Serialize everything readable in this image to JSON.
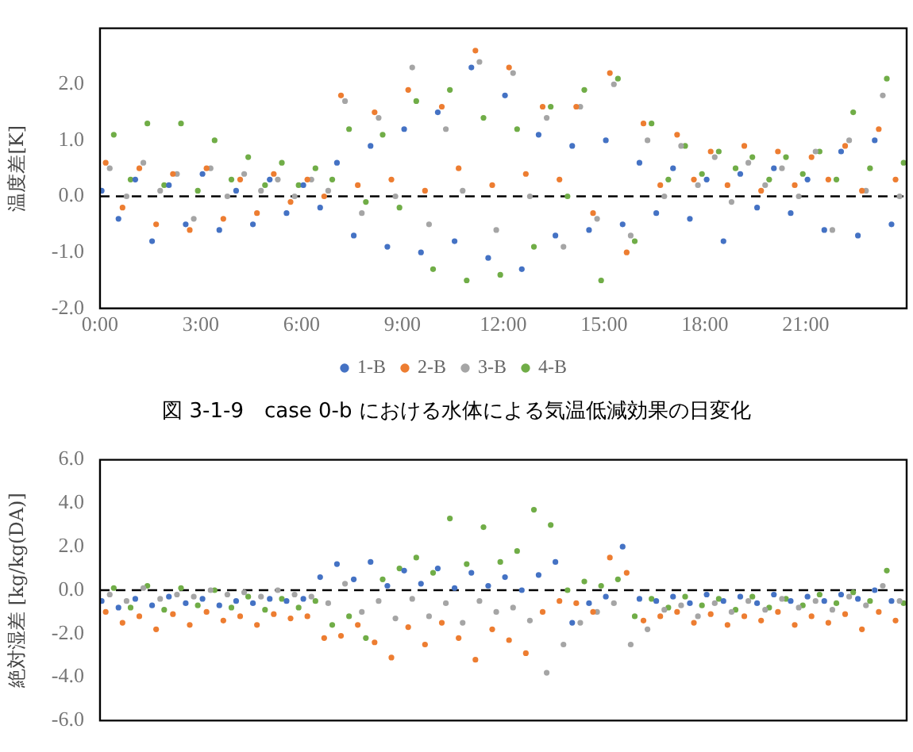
{
  "chart_data": [
    {
      "type": "scatter",
      "ylabel": "温度差[K]",
      "annotations": [
        "図 3-1-9　case 0-b における水体による気温低減効果の日変化"
      ],
      "xlim": [
        0,
        24
      ],
      "xticks": [
        {
          "value": 0,
          "label": "0:00"
        },
        {
          "value": 3,
          "label": "3:00"
        },
        {
          "value": 6,
          "label": "6:00"
        },
        {
          "value": 9,
          "label": "9:00"
        },
        {
          "value": 12,
          "label": "12:00"
        },
        {
          "value": 15,
          "label": "15:00"
        },
        {
          "value": 18,
          "label": "18:00"
        },
        {
          "value": 21,
          "label": "21:00"
        }
      ],
      "ylim": [
        -2,
        3
      ],
      "yticks": [
        {
          "value": -2,
          "label": "-2.0"
        },
        {
          "value": -1,
          "label": "-1.0"
        },
        {
          "value": 0,
          "label": "0.0"
        },
        {
          "value": 1,
          "label": "1.0"
        },
        {
          "value": 2,
          "label": "2.0"
        }
      ],
      "grid": false,
      "legend": "bottom",
      "marker": "circle",
      "ref_lines": [
        {
          "axis": "y",
          "value": 0,
          "color": "#000000",
          "line_style": "dashed"
        }
      ],
      "series": [
        {
          "name": "1-B",
          "color": "#4472c4",
          "x": [
            0.05,
            0.55,
            1.05,
            1.55,
            2.05,
            2.55,
            3.05,
            3.55,
            4.05,
            4.55,
            5.05,
            5.55,
            6.05,
            6.55,
            7.05,
            7.55,
            8.05,
            8.55,
            9.05,
            9.55,
            10.05,
            10.55,
            11.05,
            11.55,
            12.05,
            12.55,
            13.05,
            13.55,
            14.05,
            14.55,
            15.05,
            15.55,
            16.05,
            16.55,
            17.05,
            17.55,
            18.05,
            18.55,
            19.05,
            19.55,
            20.05,
            20.55,
            21.05,
            21.55,
            22.05,
            22.55,
            23.05,
            23.55
          ],
          "values": [
            0.1,
            -0.4,
            0.3,
            -0.8,
            0.2,
            -0.5,
            0.4,
            -0.6,
            0.1,
            -0.5,
            0.3,
            -0.3,
            0.2,
            -0.2,
            0.6,
            -0.7,
            0.9,
            -0.9,
            1.2,
            -1.0,
            1.5,
            -0.8,
            2.3,
            -1.1,
            1.8,
            -1.3,
            1.1,
            -0.7,
            0.9,
            -0.6,
            1.0,
            -0.5,
            0.6,
            -0.3,
            0.5,
            -0.4,
            0.3,
            -0.8,
            0.4,
            -0.2,
            0.5,
            -0.3,
            0.3,
            -0.6,
            0.8,
            -0.7,
            1.0,
            -0.5
          ]
        },
        {
          "name": "2-B",
          "color": "#ed7d31",
          "x": [
            0.17,
            0.67,
            1.17,
            1.67,
            2.17,
            2.67,
            3.17,
            3.67,
            4.17,
            4.67,
            5.17,
            5.67,
            6.17,
            6.67,
            7.17,
            7.67,
            8.17,
            8.67,
            9.17,
            9.67,
            10.17,
            10.67,
            11.17,
            11.67,
            12.17,
            12.67,
            13.17,
            13.67,
            14.17,
            14.67,
            15.17,
            15.67,
            16.17,
            16.67,
            17.17,
            17.67,
            18.17,
            18.67,
            19.17,
            19.67,
            20.17,
            20.67,
            21.17,
            21.67,
            22.17,
            22.67,
            23.17,
            23.67
          ],
          "values": [
            0.6,
            -0.2,
            0.5,
            -0.5,
            0.4,
            -0.6,
            0.5,
            -0.4,
            0.3,
            -0.3,
            0.4,
            -0.1,
            0.3,
            0.0,
            1.8,
            0.2,
            1.5,
            0.3,
            1.9,
            0.1,
            1.6,
            0.5,
            2.6,
            0.2,
            2.3,
            0.4,
            1.6,
            0.3,
            1.6,
            -0.3,
            2.2,
            -1.0,
            1.3,
            0.2,
            1.1,
            0.3,
            0.8,
            0.2,
            0.9,
            0.1,
            0.8,
            0.2,
            0.7,
            0.3,
            0.9,
            0.1,
            1.2,
            0.3
          ]
        },
        {
          "name": "3-B",
          "color": "#a5a5a5",
          "x": [
            0.29,
            0.79,
            1.29,
            1.79,
            2.29,
            2.79,
            3.29,
            3.79,
            4.29,
            4.79,
            5.29,
            5.79,
            6.29,
            6.79,
            7.29,
            7.79,
            8.29,
            8.79,
            9.29,
            9.79,
            10.29,
            10.79,
            11.29,
            11.79,
            12.29,
            12.79,
            13.29,
            13.79,
            14.29,
            14.79,
            15.29,
            15.79,
            16.29,
            16.79,
            17.29,
            17.79,
            18.29,
            18.79,
            19.29,
            19.79,
            20.29,
            20.79,
            21.29,
            21.79,
            22.29,
            22.79,
            23.29,
            23.79
          ],
          "values": [
            0.5,
            0.0,
            0.6,
            0.1,
            0.4,
            -0.4,
            0.5,
            0.0,
            0.4,
            0.1,
            0.3,
            0.0,
            0.3,
            0.1,
            1.7,
            -0.3,
            1.4,
            0.0,
            2.3,
            -0.5,
            1.2,
            0.1,
            2.4,
            -0.6,
            2.2,
            0.0,
            1.4,
            -0.9,
            1.6,
            -0.4,
            2.0,
            -0.7,
            1.0,
            0.0,
            0.9,
            0.2,
            0.7,
            -0.1,
            0.6,
            0.2,
            0.5,
            0.0,
            0.8,
            -0.6,
            1.0,
            0.1,
            1.8,
            0.0
          ]
        },
        {
          "name": "4-B",
          "color": "#70ad47",
          "x": [
            0.41,
            0.91,
            1.41,
            1.91,
            2.41,
            2.91,
            3.41,
            3.91,
            4.41,
            4.91,
            5.41,
            5.91,
            6.41,
            6.91,
            7.41,
            7.91,
            8.41,
            8.91,
            9.41,
            9.91,
            10.41,
            10.91,
            11.41,
            11.91,
            12.41,
            12.91,
            13.41,
            13.91,
            14.41,
            14.91,
            15.41,
            15.91,
            16.41,
            16.91,
            17.41,
            17.91,
            18.41,
            18.91,
            19.41,
            19.91,
            20.41,
            20.91,
            21.41,
            21.91,
            22.41,
            22.91,
            23.41,
            23.91
          ],
          "values": [
            1.1,
            0.3,
            1.3,
            0.2,
            1.3,
            0.1,
            1.0,
            0.3,
            0.7,
            0.2,
            0.6,
            0.2,
            0.5,
            0.3,
            1.2,
            -0.1,
            1.1,
            -0.2,
            1.7,
            -1.3,
            1.9,
            -1.5,
            1.4,
            -1.4,
            1.2,
            -0.9,
            1.6,
            0.0,
            1.9,
            -1.5,
            2.1,
            -0.8,
            1.3,
            0.3,
            0.9,
            0.4,
            0.8,
            0.5,
            0.7,
            0.3,
            0.7,
            0.4,
            0.8,
            0.3,
            1.5,
            0.5,
            2.1,
            0.6
          ]
        }
      ]
    },
    {
      "type": "scatter",
      "ylabel": "絶対湿差 [kg/kg(DA)]",
      "xlim": [
        0,
        24
      ],
      "tick_labels": "y",
      "ylim": [
        -6,
        6
      ],
      "yticks": [
        {
          "value": -6,
          "label": "-6.0"
        },
        {
          "value": -4,
          "label": "-4.0"
        },
        {
          "value": -2,
          "label": "-2.0"
        },
        {
          "value": 0,
          "label": "0.0"
        },
        {
          "value": 2,
          "label": "2.0"
        },
        {
          "value": 4,
          "label": "4.0"
        },
        {
          "value": 6,
          "label": "6.0"
        }
      ],
      "grid": false,
      "marker": "circle",
      "ref_lines": [
        {
          "axis": "y",
          "value": 0,
          "color": "#000000",
          "line_style": "dashed"
        }
      ],
      "series": [
        {
          "color": "#4472c4",
          "x": [
            0.05,
            0.55,
            1.05,
            1.55,
            2.05,
            2.55,
            3.05,
            3.55,
            4.05,
            4.55,
            5.05,
            5.55,
            6.05,
            6.55,
            7.05,
            7.55,
            8.05,
            8.55,
            9.05,
            9.55,
            10.05,
            10.55,
            11.05,
            11.55,
            12.05,
            12.55,
            13.05,
            13.55,
            14.05,
            14.55,
            15.05,
            15.55,
            16.05,
            16.55,
            17.05,
            17.55,
            18.05,
            18.55,
            19.05,
            19.55,
            20.05,
            20.55,
            21.05,
            21.55,
            22.05,
            22.55,
            23.05,
            23.55
          ],
          "values": [
            -0.5,
            -0.8,
            -0.4,
            -0.7,
            -0.3,
            -0.6,
            -0.4,
            -0.7,
            -0.5,
            -0.6,
            -0.4,
            -0.5,
            -0.4,
            0.6,
            1.2,
            0.5,
            1.3,
            0.2,
            0.9,
            0.3,
            1.0,
            0.1,
            0.8,
            0.2,
            0.6,
            0.0,
            0.7,
            1.3,
            -1.5,
            -0.6,
            -0.3,
            2.0,
            -0.4,
            -0.5,
            -0.3,
            -0.6,
            -0.2,
            -0.5,
            -0.3,
            -0.6,
            -0.2,
            -0.5,
            -0.3,
            -0.5,
            -0.2,
            -0.4,
            0.0,
            -0.5
          ]
        },
        {
          "color": "#ed7d31",
          "x": [
            0.17,
            0.67,
            1.17,
            1.67,
            2.17,
            2.67,
            3.17,
            3.67,
            4.17,
            4.67,
            5.17,
            5.67,
            6.17,
            6.67,
            7.17,
            7.67,
            8.17,
            8.67,
            9.17,
            9.67,
            10.17,
            10.67,
            11.17,
            11.67,
            12.17,
            12.67,
            13.17,
            13.67,
            14.17,
            14.67,
            15.17,
            15.67,
            16.17,
            16.67,
            17.17,
            17.67,
            18.17,
            18.67,
            19.17,
            19.67,
            20.17,
            20.67,
            21.17,
            21.67,
            22.17,
            22.67,
            23.17,
            23.67
          ],
          "values": [
            -1.0,
            -1.5,
            -1.2,
            -1.8,
            -1.1,
            -1.6,
            -1.0,
            -1.4,
            -1.2,
            -1.6,
            -1.1,
            -1.3,
            -1.2,
            -2.2,
            -2.1,
            -1.6,
            -2.4,
            -3.1,
            -1.7,
            -2.5,
            -1.5,
            -2.2,
            -3.2,
            -1.8,
            -2.3,
            -2.9,
            -1.0,
            -0.5,
            -0.6,
            -1.0,
            1.5,
            0.8,
            -1.4,
            -1.2,
            -1.0,
            -1.5,
            -1.1,
            -1.6,
            -1.2,
            -1.4,
            -1.0,
            -1.6,
            -1.2,
            -1.5,
            -1.1,
            -1.8,
            -1.0,
            -1.4
          ]
        },
        {
          "color": "#a5a5a5",
          "x": [
            0.29,
            0.79,
            1.29,
            1.79,
            2.29,
            2.79,
            3.29,
            3.79,
            4.29,
            4.79,
            5.29,
            5.79,
            6.29,
            6.79,
            7.29,
            7.79,
            8.29,
            8.79,
            9.29,
            9.79,
            10.29,
            10.79,
            11.29,
            11.79,
            12.29,
            12.79,
            13.29,
            13.79,
            14.29,
            14.79,
            15.29,
            15.79,
            16.29,
            16.79,
            17.29,
            17.79,
            18.29,
            18.79,
            19.29,
            19.79,
            20.29,
            20.79,
            21.29,
            21.79,
            22.29,
            22.79,
            23.29,
            23.79
          ],
          "values": [
            -0.2,
            -0.5,
            0.1,
            -0.4,
            -0.2,
            -0.3,
            0.0,
            -0.2,
            -0.1,
            -0.3,
            0.0,
            -0.2,
            -0.3,
            -0.6,
            0.3,
            -1.0,
            -0.5,
            -1.3,
            -0.4,
            -1.2,
            -0.6,
            -1.5,
            -0.5,
            -1.0,
            -0.8,
            -1.4,
            -3.8,
            -2.5,
            -1.5,
            -1.0,
            -0.6,
            -2.5,
            -1.8,
            -0.9,
            -0.7,
            -1.2,
            -0.6,
            -1.0,
            -0.5,
            -0.9,
            -0.4,
            -0.8,
            -0.5,
            -0.9,
            -0.3,
            -0.7,
            0.2,
            -0.5
          ]
        },
        {
          "color": "#70ad47",
          "x": [
            0.41,
            0.91,
            1.41,
            1.91,
            2.41,
            2.91,
            3.41,
            3.91,
            4.41,
            4.91,
            5.41,
            5.91,
            6.41,
            6.91,
            7.41,
            7.91,
            8.41,
            8.91,
            9.41,
            9.91,
            10.41,
            10.91,
            11.41,
            11.91,
            12.41,
            12.91,
            13.41,
            13.91,
            14.41,
            14.91,
            15.41,
            15.91,
            16.41,
            16.91,
            17.41,
            17.91,
            18.41,
            18.91,
            19.41,
            19.91,
            20.41,
            20.91,
            21.41,
            21.91,
            22.41,
            22.91,
            23.41,
            23.91
          ],
          "values": [
            0.1,
            -0.8,
            0.2,
            -0.9,
            0.1,
            -0.7,
            0.0,
            -0.8,
            -0.3,
            -0.9,
            -0.4,
            -0.8,
            -0.5,
            -1.6,
            -1.2,
            -2.2,
            0.5,
            1.0,
            1.5,
            0.8,
            3.3,
            1.2,
            2.9,
            1.3,
            1.8,
            3.7,
            3.0,
            0.0,
            0.4,
            0.2,
            0.5,
            -1.2,
            -0.4,
            -0.8,
            -0.3,
            -0.7,
            -0.4,
            -0.9,
            -0.3,
            -0.8,
            -0.4,
            -0.7,
            -0.2,
            -0.6,
            -0.1,
            -0.5,
            0.9,
            -0.6
          ]
        }
      ]
    }
  ]
}
